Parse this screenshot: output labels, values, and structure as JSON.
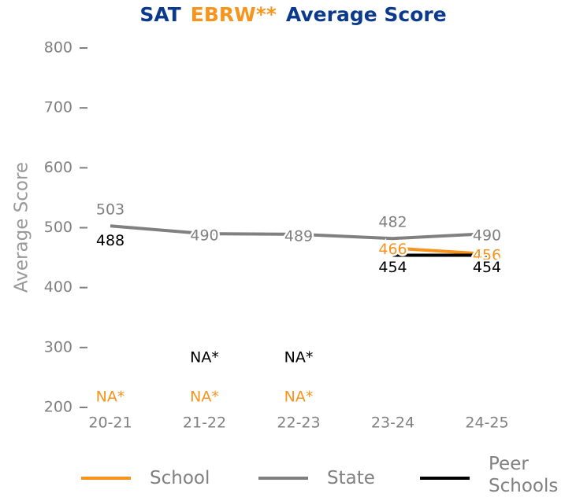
{
  "chart_data": {
    "type": "line",
    "title": [
      "SAT",
      "EBRW**",
      "Average Score"
    ],
    "title_colors": [
      "#0b3a8c",
      "#f7941d",
      "#0b3a8c"
    ],
    "y_label": "Average Score",
    "categories": [
      "20-21",
      "21-22",
      "22-23",
      "23-24",
      "24-25"
    ],
    "ylim": [
      200,
      800
    ],
    "yticks": [
      200,
      300,
      400,
      500,
      600,
      700,
      800
    ],
    "series": [
      {
        "name": "School",
        "color": "#f7941d",
        "values": [
          null,
          null,
          null,
          466,
          456
        ],
        "value_labels": [
          "NA*",
          "NA*",
          "NA*",
          "466",
          "456"
        ]
      },
      {
        "name": "State",
        "color": "#808080",
        "values": [
          503,
          490,
          489,
          482,
          490
        ],
        "value_labels": [
          "503",
          "490",
          "489",
          "482",
          "490"
        ]
      },
      {
        "name": "Peer Schools",
        "color": "#000000",
        "values": [
          488,
          null,
          null,
          454,
          454
        ],
        "value_labels": [
          "488",
          "NA*",
          "NA*",
          "454",
          "454"
        ]
      }
    ]
  }
}
